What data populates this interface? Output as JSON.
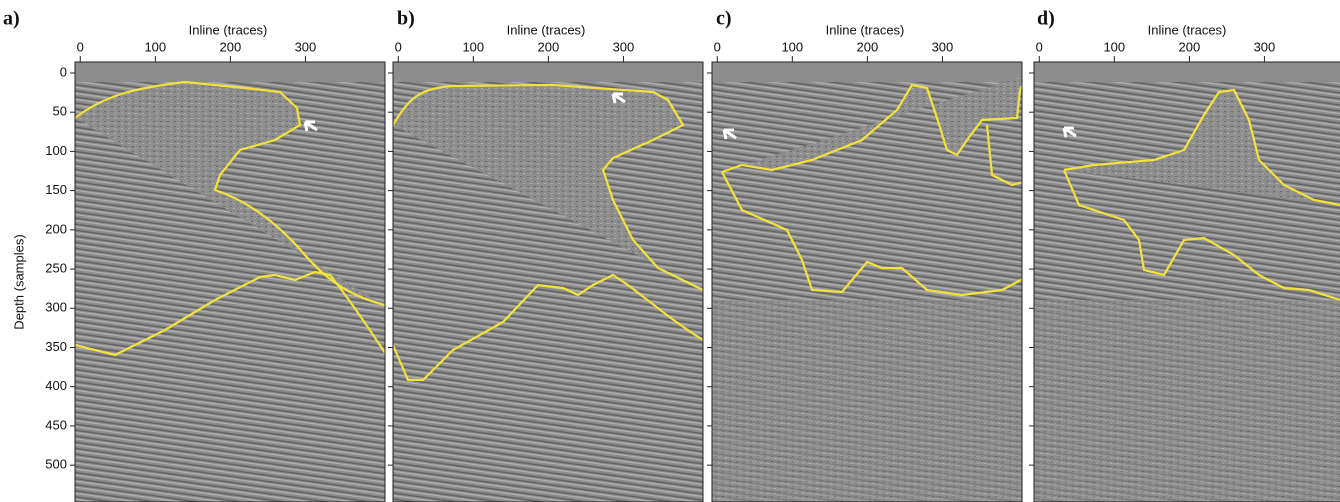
{
  "figure": {
    "ylabel": "Depth (samples)",
    "ylim": [
      -14,
      547
    ],
    "yticks": [
      0,
      50,
      100,
      150,
      200,
      250,
      300,
      350,
      400,
      450,
      500
    ],
    "panels": [
      {
        "label": "a)",
        "xlabel": "Inline (traces)",
        "xlim": [
          -7,
          406
        ],
        "xticks": [
          0,
          100,
          200,
          300
        ]
      },
      {
        "label": "b)",
        "xlabel": "Inline (traces)",
        "xlim": [
          -7,
          406
        ],
        "xticks": [
          0,
          100,
          200,
          300
        ]
      },
      {
        "label": "c)",
        "xlabel": "Inline (traces)",
        "xlim": [
          -7,
          406
        ],
        "xticks": [
          0,
          100,
          200,
          300
        ]
      },
      {
        "label": "d)",
        "xlabel": "Inline (traces)",
        "xlim": [
          -7,
          406
        ],
        "xticks": [
          0,
          100,
          200,
          300
        ]
      }
    ]
  }
}
